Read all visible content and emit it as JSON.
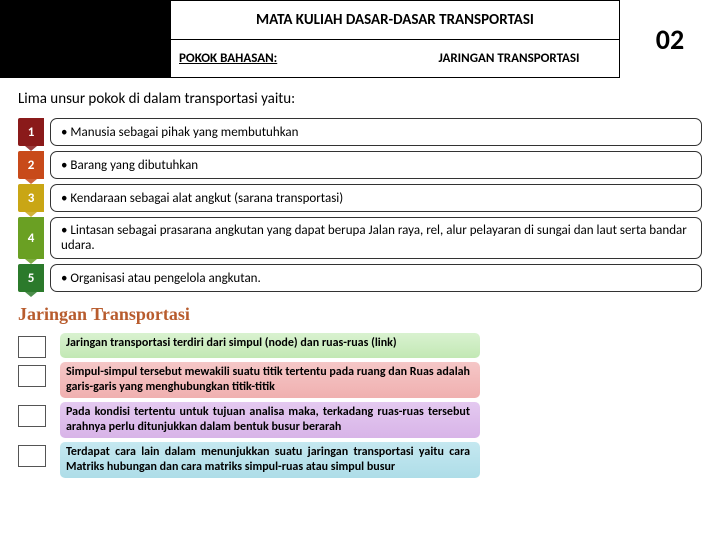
{
  "header": {
    "course_title": "MATA KULIAH DASAR-DASAR TRANSPORTASI",
    "subtitle_left": "POKOK BAHASAN:",
    "subtitle_right": "JARINGAN TRANSPORTASI",
    "page_number": "02"
  },
  "section1": {
    "intro": "Lima unsur pokok di dalam transportasi yaitu:",
    "items": [
      {
        "num": "1",
        "text": "• Manusia sebagai pihak yang membutuhkan",
        "color": "#8a1a1a"
      },
      {
        "num": "2",
        "text": "• Barang yang dibutuhkan",
        "color": "#c84a1a"
      },
      {
        "num": "3",
        "text": "• Kendaraan sebagai alat angkut (sarana transportasi)",
        "color": "#c9a615"
      },
      {
        "num": "4",
        "text": "• Lintasan sebagai prasarana angkutan yang dapat berupa Jalan raya, rel,  alur pelayaran di sungai dan laut serta bandar udara.",
        "color": "#6aa023"
      },
      {
        "num": "5",
        "text": "• Organisasi atau pengelola angkutan.",
        "color": "#2b7a2b"
      }
    ]
  },
  "section2": {
    "heading": "Jaringan Transportasi",
    "paragraphs": [
      "Jaringan transportasi terdiri dari simpul (node) dan ruas-ruas (link)",
      "Simpul-simpul tersebut mewakili suatu titik tertentu pada ruang dan Ruas adalah garis-garis yang menghubungkan titik-titik",
      "Pada kondisi tertentu untuk tujuan analisa maka, terkadang ruas-ruas tersebut arahnya perlu ditunjukkan dalam bentuk busur berarah",
      "Terdapat cara lain dalam menunjukkan  suatu jaringan transportasi yaitu cara Matriks hubungan dan cara matriks simpul-ruas atau simpul busur"
    ]
  }
}
